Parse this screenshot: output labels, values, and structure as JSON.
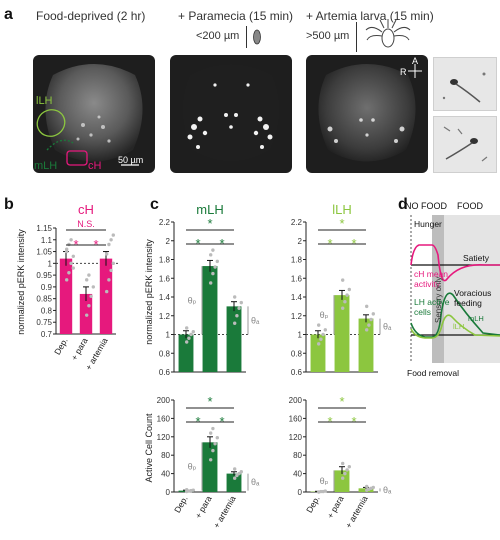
{
  "panel_a": {
    "letter": "a",
    "conditions": [
      "Food-deprived (2 hr)",
      "+ Paramecia (15 min)",
      "+ Artemia larva (15 min)"
    ],
    "paramecia_size": "<200 µm",
    "artemia_size": ">500 µm",
    "scale_bar": "50 µm",
    "orientation_a": "A",
    "orientation_r": "R",
    "region_labels": [
      "lLH",
      "mLH",
      "cH"
    ]
  },
  "panel_b": {
    "letter": "b",
    "title": "cH",
    "ylabel": "normalized pERK intensity",
    "ns": "N.S.",
    "sig": "*",
    "yticks": [
      "0.7",
      "0.75",
      "0.8",
      "0.85",
      "0.9",
      "0.95",
      "1",
      "1.05",
      "1.1",
      "1.15"
    ],
    "categories": [
      "Dep.",
      "+ para",
      "+ artemia"
    ]
  },
  "panel_c": {
    "letter": "c",
    "title_mlh": "mLH",
    "title_llh": "lLH",
    "ylabel_top": "normalized pERK intensity",
    "ylabel_bottom": "Active Cell Count",
    "yticks_top": [
      "0.6",
      "0.8",
      "1",
      "1.2",
      "1.4",
      "1.6",
      "1.8",
      "2",
      "2.2"
    ],
    "yticks_bottom": [
      "0",
      "40",
      "80",
      "120",
      "160",
      "200"
    ],
    "categories": [
      "Dep.",
      "+ para",
      "+ artemia"
    ],
    "theta_p": "θₚ",
    "theta_a": "θₐ",
    "sig": "*"
  },
  "panel_d": {
    "letter": "d",
    "no_food": "NO FOOD",
    "food": "FOOD",
    "hunger": "Hunger",
    "satiety": "Satiety",
    "ch_activity_1": "cH mean",
    "ch_activity_2": "activity",
    "sensory_only": "Sensory only",
    "voracious_1": "Voracious",
    "voracious_2": "feeding",
    "lh_cells_1": "LH active",
    "lh_cells_2": "cells",
    "mlh": "mLH",
    "llh": "lLH",
    "food_removal": "Food removal"
  },
  "colors": {
    "magenta": "#e6197d",
    "dark_green": "#1a7a3a",
    "light_green": "#8cc63f"
  },
  "chart_data": [
    {
      "type": "bar",
      "panel": "b",
      "title": "cH",
      "ylabel": "normalized pERK intensity",
      "categories": [
        "Dep.",
        "+ para",
        "+ artemia"
      ],
      "values": [
        1.02,
        0.87,
        1.02
      ],
      "errors": [
        0.03,
        0.03,
        0.03
      ],
      "ylim": [
        0.7,
        1.15
      ],
      "points": [
        [
          0.93,
          0.96,
          1.0,
          1.03,
          1.05,
          1.08,
          1.1,
          0.98,
          1.06
        ],
        [
          0.78,
          0.82,
          0.86,
          0.9,
          0.93,
          0.95
        ],
        [
          0.88,
          0.93,
          0.97,
          1.0,
          1.04,
          1.08,
          1.1,
          1.12
        ]
      ]
    },
    {
      "type": "bar",
      "panel": "c-top-mLH",
      "title": "mLH",
      "ylabel": "normalized pERK intensity",
      "categories": [
        "Dep.",
        "+ para",
        "+ artemia"
      ],
      "values": [
        1.0,
        1.73,
        1.3
      ],
      "errors": [
        0.04,
        0.06,
        0.05
      ],
      "ylim": [
        0.6,
        2.2
      ],
      "points": [
        [
          0.92,
          0.96,
          1.0,
          1.03,
          1.07
        ],
        [
          1.55,
          1.65,
          1.72,
          1.78,
          1.85,
          1.9
        ],
        [
          1.12,
          1.2,
          1.28,
          1.34,
          1.4
        ]
      ]
    },
    {
      "type": "bar",
      "panel": "c-top-lLH",
      "title": "lLH",
      "ylabel": "normalized pERK intensity",
      "categories": [
        "Dep.",
        "+ para",
        "+ artemia"
      ],
      "values": [
        1.0,
        1.42,
        1.17
      ],
      "errors": [
        0.04,
        0.05,
        0.04
      ],
      "ylim": [
        0.6,
        2.2
      ],
      "points": [
        [
          0.9,
          0.95,
          1.0,
          1.05,
          1.1
        ],
        [
          1.28,
          1.35,
          1.42,
          1.48,
          1.58
        ],
        [
          1.05,
          1.1,
          1.16,
          1.22,
          1.3
        ]
      ]
    },
    {
      "type": "bar",
      "panel": "c-bottom-mLH",
      "title": "mLH",
      "ylabel": "Active Cell Count",
      "categories": [
        "Dep.",
        "+ para",
        "+ artemia"
      ],
      "values": [
        3,
        108,
        40
      ],
      "errors": [
        1,
        12,
        4
      ],
      "ylim": [
        0,
        200
      ],
      "points": [
        [
          1,
          2,
          3,
          4,
          5
        ],
        [
          70,
          90,
          105,
          118,
          128,
          138
        ],
        [
          30,
          36,
          40,
          44,
          50
        ]
      ]
    },
    {
      "type": "bar",
      "panel": "c-bottom-lLH",
      "title": "lLH",
      "ylabel": "Active Cell Count",
      "categories": [
        "Dep.",
        "+ para",
        "+ artemia"
      ],
      "values": [
        1,
        47,
        8
      ],
      "errors": [
        0.5,
        8,
        2
      ],
      "ylim": [
        0,
        200
      ],
      "points": [
        [
          0,
          1,
          1,
          2
        ],
        [
          30,
          40,
          48,
          55,
          62
        ],
        [
          4,
          6,
          8,
          10,
          12
        ]
      ]
    }
  ]
}
